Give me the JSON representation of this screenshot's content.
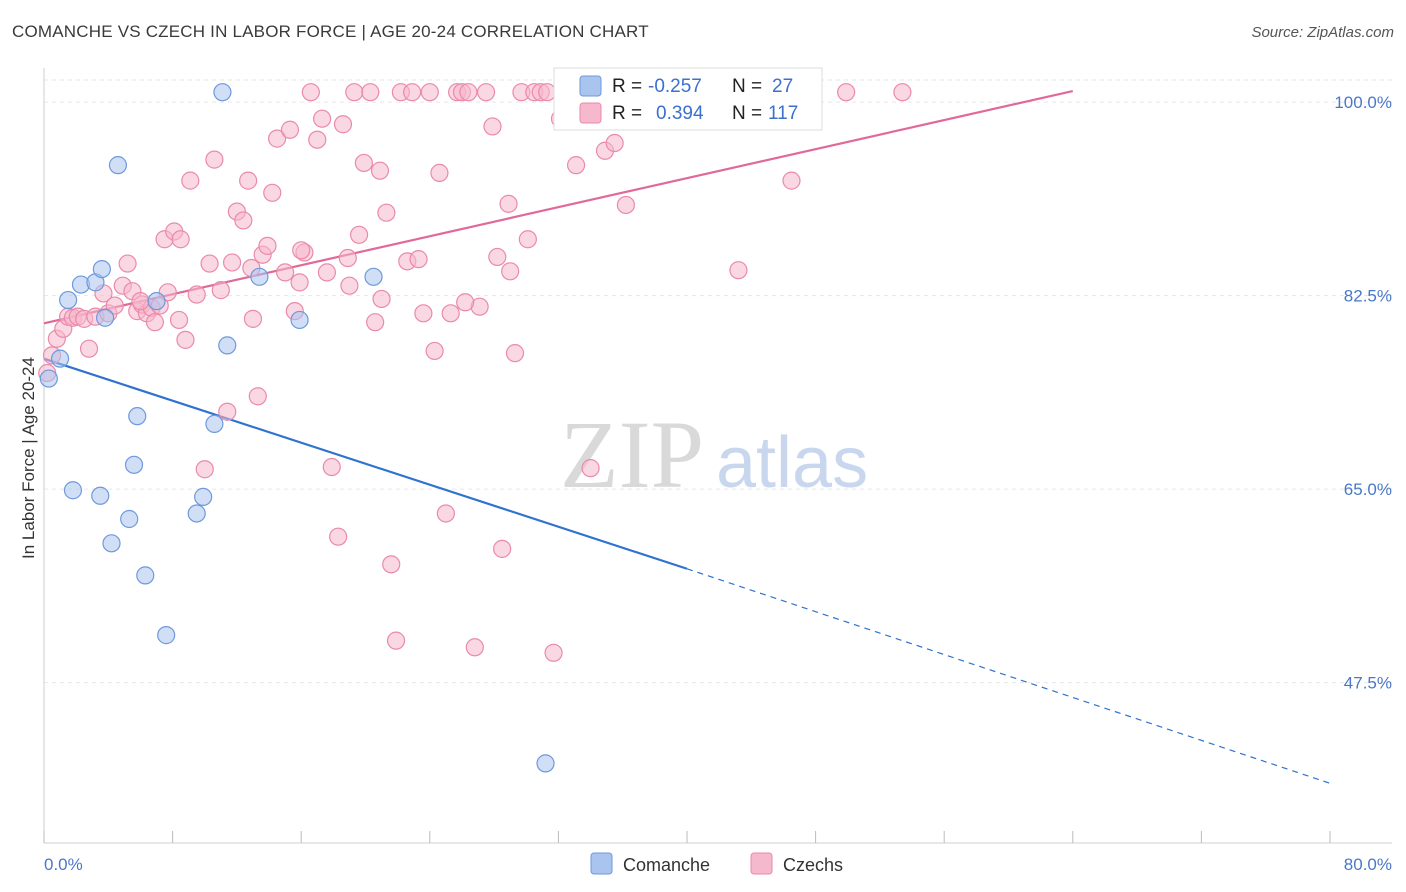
{
  "title": "COMANCHE VS CZECH IN LABOR FORCE | AGE 20-24 CORRELATION CHART",
  "source": "Source: ZipAtlas.com",
  "watermark": {
    "zip": "ZIP",
    "atlas": "atlas"
  },
  "colors": {
    "comanche_fill": "#a9c4ef",
    "comanche_stroke": "#6e99dc",
    "comanche_line": "#2f72d0",
    "czechs_fill": "#f6b8cc",
    "czechs_stroke": "#ea8aa9",
    "czechs_line": "#e0699a",
    "tick_label": "#4a78c8",
    "grid": "#e6e6e6"
  },
  "legend": {
    "r_label": "R =",
    "n_label": "N =",
    "rows": [
      {
        "series": "Comanche",
        "r": "-0.257",
        "n": "27"
      },
      {
        "series": "Czechs",
        "r": "0.394",
        "n": "117"
      }
    ]
  },
  "bottom_legend": [
    "Comanche",
    "Czechs"
  ],
  "chart_data": {
    "type": "scatter",
    "title": "COMANCHE VS CZECH IN LABOR FORCE | AGE 20-24 CORRELATION CHART",
    "xlabel": "",
    "ylabel": "In Labor Force | Age 20-24",
    "xlim": [
      0,
      80
    ],
    "ylim": [
      33,
      102
    ],
    "x_tick_labels": [
      "0.0%",
      "80.0%"
    ],
    "y_ticks": [
      47.5,
      65.0,
      82.5,
      100.0
    ],
    "y_tick_labels": [
      "47.5%",
      "65.0%",
      "82.5%",
      "100.0%"
    ],
    "grid": true,
    "legend_position": "top-center",
    "series": [
      {
        "name": "Comanche",
        "r": -0.257,
        "n": 27,
        "trend": {
          "x0": 0,
          "y0": 76.8,
          "x1": 40,
          "y1": 57.8,
          "dashed_to_x": 80,
          "dashed_to_y": 38.4
        },
        "points": [
          [
            0.3,
            75.0
          ],
          [
            1.0,
            76.8
          ],
          [
            1.5,
            82.1
          ],
          [
            1.8,
            64.9
          ],
          [
            2.3,
            83.5
          ],
          [
            3.2,
            83.7
          ],
          [
            3.5,
            64.4
          ],
          [
            3.6,
            84.9
          ],
          [
            3.8,
            80.5
          ],
          [
            4.2,
            60.1
          ],
          [
            4.6,
            94.3
          ],
          [
            5.3,
            62.3
          ],
          [
            5.6,
            67.2
          ],
          [
            5.8,
            71.6
          ],
          [
            6.3,
            57.2
          ],
          [
            7.0,
            82.0
          ],
          [
            7.6,
            51.8
          ],
          [
            9.5,
            62.8
          ],
          [
            9.9,
            64.3
          ],
          [
            10.6,
            70.9
          ],
          [
            11.1,
            100.9
          ],
          [
            11.4,
            78.0
          ],
          [
            13.4,
            84.2
          ],
          [
            15.9,
            80.3
          ],
          [
            20.5,
            84.2
          ],
          [
            31.2,
            40.2
          ],
          [
            40.2,
            100.3
          ]
        ]
      },
      {
        "name": "Czechs",
        "r": 0.394,
        "n": 117,
        "trend": {
          "x0": 0,
          "y0": 80.0,
          "x1": 64,
          "y1": 101.0
        },
        "points": [
          [
            0.2,
            75.5
          ],
          [
            0.5,
            77.1
          ],
          [
            0.8,
            78.6
          ],
          [
            1.2,
            79.5
          ],
          [
            1.5,
            80.6
          ],
          [
            1.8,
            80.5
          ],
          [
            2.1,
            80.6
          ],
          [
            2.5,
            80.4
          ],
          [
            2.8,
            77.7
          ],
          [
            3.2,
            80.6
          ],
          [
            3.7,
            82.7
          ],
          [
            4.0,
            80.9
          ],
          [
            4.4,
            81.6
          ],
          [
            4.9,
            83.4
          ],
          [
            5.2,
            85.4
          ],
          [
            5.5,
            82.9
          ],
          [
            5.8,
            81.1
          ],
          [
            6.1,
            81.7
          ],
          [
            6.4,
            80.9
          ],
          [
            6.7,
            81.4
          ],
          [
            6.9,
            80.1
          ],
          [
            7.2,
            81.6
          ],
          [
            7.5,
            87.6
          ],
          [
            7.7,
            82.8
          ],
          [
            8.1,
            88.3
          ],
          [
            8.5,
            87.6
          ],
          [
            8.8,
            78.5
          ],
          [
            9.1,
            92.9
          ],
          [
            9.5,
            82.6
          ],
          [
            10.0,
            66.8
          ],
          [
            10.3,
            85.4
          ],
          [
            10.6,
            94.8
          ],
          [
            11.0,
            83.0
          ],
          [
            11.4,
            72.0
          ],
          [
            11.7,
            85.5
          ],
          [
            12.0,
            90.1
          ],
          [
            12.4,
            89.3
          ],
          [
            12.7,
            92.9
          ],
          [
            13.0,
            80.4
          ],
          [
            13.3,
            73.4
          ],
          [
            13.6,
            86.2
          ],
          [
            13.9,
            87.0
          ],
          [
            14.2,
            91.8
          ],
          [
            14.5,
            96.7
          ],
          [
            15.0,
            84.6
          ],
          [
            15.3,
            97.5
          ],
          [
            15.6,
            81.1
          ],
          [
            15.9,
            83.7
          ],
          [
            16.2,
            86.4
          ],
          [
            16.6,
            100.9
          ],
          [
            17.0,
            96.6
          ],
          [
            17.3,
            98.5
          ],
          [
            17.6,
            84.6
          ],
          [
            17.9,
            67.0
          ],
          [
            18.3,
            60.7
          ],
          [
            18.6,
            98.0
          ],
          [
            18.9,
            85.9
          ],
          [
            19.3,
            100.9
          ],
          [
            19.6,
            88.0
          ],
          [
            19.9,
            94.5
          ],
          [
            20.3,
            100.9
          ],
          [
            20.6,
            80.1
          ],
          [
            20.9,
            93.8
          ],
          [
            21.3,
            90.0
          ],
          [
            21.6,
            58.2
          ],
          [
            21.9,
            51.3
          ],
          [
            22.2,
            100.9
          ],
          [
            22.6,
            85.6
          ],
          [
            22.9,
            100.9
          ],
          [
            23.3,
            85.8
          ],
          [
            23.6,
            80.9
          ],
          [
            24.0,
            100.9
          ],
          [
            24.3,
            77.5
          ],
          [
            24.6,
            93.6
          ],
          [
            25.0,
            62.8
          ],
          [
            25.3,
            80.9
          ],
          [
            25.7,
            100.9
          ],
          [
            26.0,
            100.9
          ],
          [
            26.4,
            100.9
          ],
          [
            26.8,
            50.7
          ],
          [
            27.1,
            81.5
          ],
          [
            27.5,
            100.9
          ],
          [
            27.9,
            97.8
          ],
          [
            28.2,
            86.0
          ],
          [
            28.5,
            59.6
          ],
          [
            28.9,
            90.8
          ],
          [
            29.3,
            77.3
          ],
          [
            29.7,
            100.9
          ],
          [
            30.1,
            87.6
          ],
          [
            30.5,
            100.9
          ],
          [
            30.9,
            100.9
          ],
          [
            31.3,
            100.9
          ],
          [
            31.7,
            50.2
          ],
          [
            32.1,
            98.5
          ],
          [
            32.5,
            100.9
          ],
          [
            33.1,
            94.3
          ],
          [
            34.0,
            66.9
          ],
          [
            34.9,
            95.6
          ],
          [
            36.2,
            90.7
          ],
          [
            37.0,
            100.9
          ],
          [
            38.1,
            100.9
          ],
          [
            39.4,
            100.9
          ],
          [
            40.5,
            100.9
          ],
          [
            43.2,
            84.8
          ],
          [
            45.8,
            100.9
          ],
          [
            46.5,
            92.9
          ],
          [
            49.9,
            100.9
          ],
          [
            53.4,
            100.9
          ],
          [
            6.0,
            82.0
          ],
          [
            8.4,
            80.3
          ],
          [
            12.9,
            85.0
          ],
          [
            16.0,
            86.6
          ],
          [
            19.0,
            83.4
          ],
          [
            21.0,
            82.2
          ],
          [
            26.2,
            81.9
          ],
          [
            29.0,
            84.7
          ],
          [
            35.5,
            96.3
          ]
        ]
      }
    ]
  }
}
